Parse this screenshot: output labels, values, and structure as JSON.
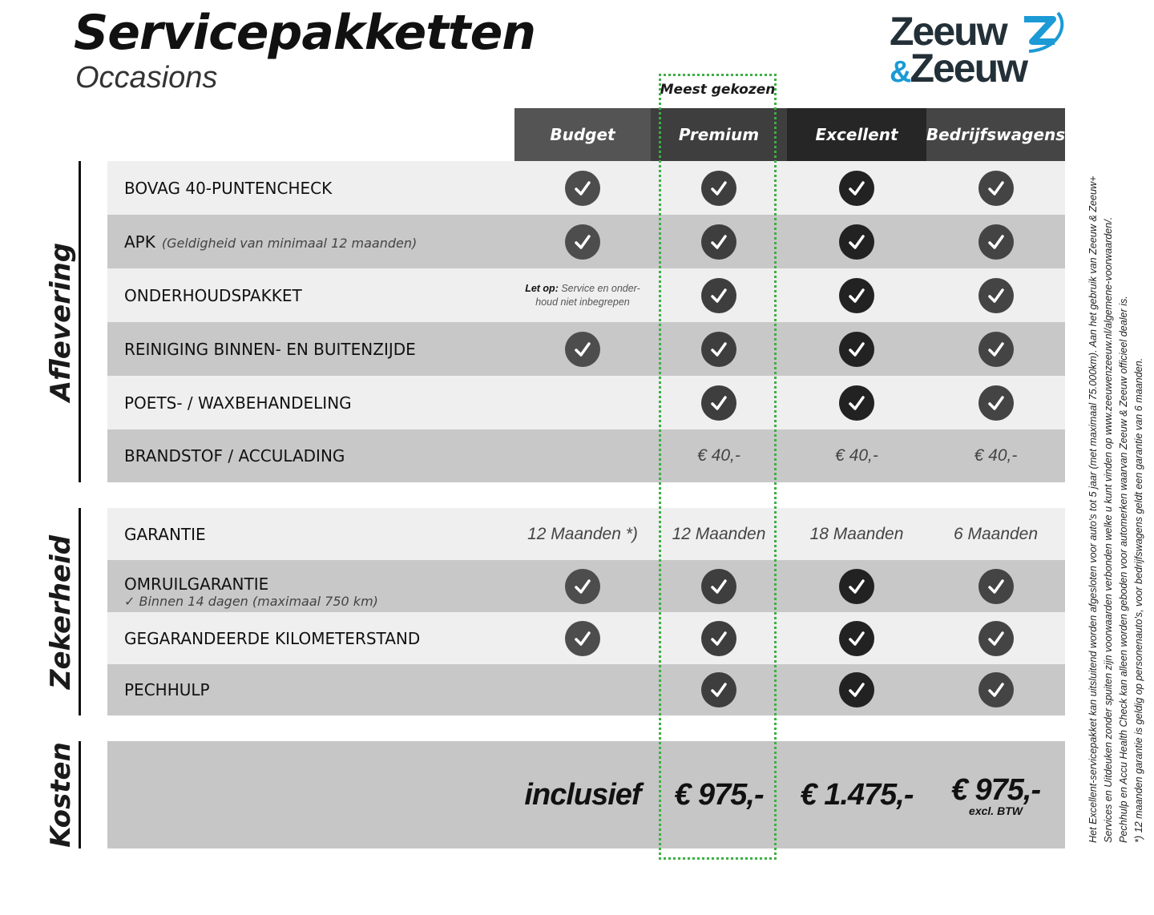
{
  "header": {
    "title": "Servicepakketten",
    "subtitle": "Occasions",
    "logo_text": [
      "Zeeuw",
      "&",
      "Zeeuw"
    ],
    "most_chosen": "Meest gekozen"
  },
  "colors": {
    "accent_green": "#3cb043",
    "logo_blue": "#1b9ad6",
    "logo_dark": "#233038"
  },
  "columns": [
    {
      "label": "Budget",
      "bg": "#545454",
      "check": "#4d4d4d"
    },
    {
      "label": "Premium",
      "bg": "#3e3e3e",
      "check": "#3e3e3e"
    },
    {
      "label": "Excellent",
      "bg": "#262626",
      "check": "#222222"
    },
    {
      "label": "Bedrijfswagens",
      "bg": "#454545",
      "check": "#444444"
    }
  ],
  "sections": [
    {
      "label": "Aflevering",
      "rows": [
        {
          "label": "BOVAG 40-PUNTENCHECK",
          "cells": [
            "check",
            "check",
            "check",
            "check"
          ]
        },
        {
          "label": "APK",
          "note": "(Geldigheid van minimaal 12 maanden)",
          "cells": [
            "check",
            "check",
            "check",
            "check"
          ]
        },
        {
          "label": "ONDERHOUDSPAKKET",
          "cells": [
            {
              "bold": "Let op:",
              "text": " Service en onder-houd niet inbegrepen"
            },
            "check",
            "check",
            "check"
          ]
        },
        {
          "label": "REINIGING BINNEN- EN BUITENZIJDE",
          "cells": [
            "check",
            "check",
            "check",
            "check"
          ]
        },
        {
          "label": "POETS- / WAXBEHANDELING",
          "cells": [
            "",
            "check",
            "check",
            "check"
          ]
        },
        {
          "label": "BRANDSTOF / ACCULADING",
          "cells": [
            "",
            "€ 40,-",
            "€ 40,-",
            "€ 40,-"
          ]
        }
      ]
    },
    {
      "label": "Zekerheid",
      "rows": [
        {
          "label": "GARANTIE",
          "cells": [
            "12 Maanden *)",
            "12 Maanden",
            "18 Maanden",
            "6 Maanden"
          ]
        },
        {
          "label": "OMRUILGARANTIE",
          "sub": "✓   Binnen 14 dagen (maximaal 750 km)",
          "cells": [
            "check",
            "check",
            "check",
            "check"
          ]
        },
        {
          "label": "GEGARANDEERDE KILOMETERSTAND",
          "cells": [
            "check",
            "check",
            "check",
            "check"
          ]
        },
        {
          "label": "PECHHULP",
          "cells": [
            "",
            "check",
            "check",
            "check"
          ]
        }
      ]
    },
    {
      "label": "Kosten",
      "rows": [
        {
          "label": "",
          "cells": [
            {
              "price": "inclusief"
            },
            {
              "price": "€ 975,-"
            },
            {
              "price": "€ 1.475,-"
            },
            {
              "price": "€ 975,-",
              "extra": "excl. BTW"
            }
          ]
        }
      ]
    }
  ],
  "footnotes": [
    "Het Excellent-servicepakket kan uitsluitend worden afgesloten voor auto's tot 5 jaar (met maximaal 75.000km). Aan het gebruik van Zeeuw & Zeeuw+",
    "Services en Uitdeuken zonder spuiten zijn voorwaarden verbonden welke u kunt vinden op www.zeeuwenzeeuw.nl/algemene-voorwaarden/.",
    "Pechhulp en Accu Health Check kan alleen worden geboden voor automerken waarvan Zeeuw & Zeeuw officieel dealer is.",
    "*) 12 maanden garantie is geldig op personenauto's, voor bedrijfswagens geldt een garantie van 6 maanden."
  ]
}
